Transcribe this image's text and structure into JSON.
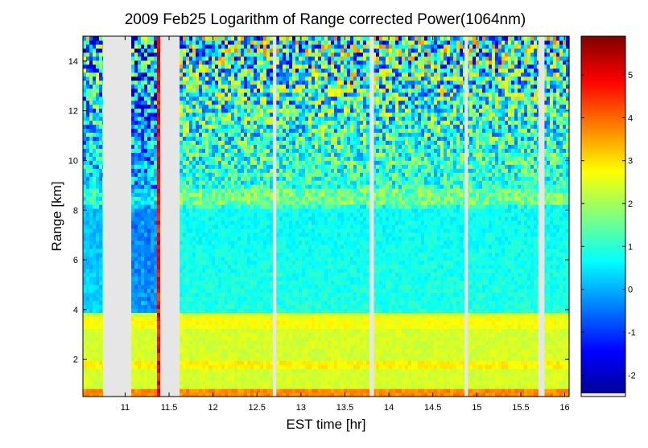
{
  "chart_data": {
    "type": "heatmap",
    "title": "2009 Feb25  Logarithm of Range corrected Power(1064nm)",
    "xlabel": "EST time [hr]",
    "ylabel": "Range [km]",
    "xlim": [
      10.52,
      16.05
    ],
    "ylim": [
      0.5,
      15
    ],
    "x_ticks": [
      11,
      11.5,
      12,
      12.5,
      13,
      13.5,
      14,
      14.5,
      15,
      15.5,
      16
    ],
    "x_tick_labels": [
      "11",
      "11.5",
      "12",
      "12.5",
      "13",
      "13.5",
      "14",
      "14.5",
      "15",
      "15.5",
      "16"
    ],
    "y_ticks": [
      2,
      4,
      6,
      8,
      10,
      12,
      14
    ],
    "y_tick_labels": [
      "2",
      "4",
      "6",
      "8",
      "10",
      "12",
      "14"
    ],
    "colorbar": {
      "colormap": "jet",
      "clim": [
        -2.5,
        5.9
      ],
      "ticks": [
        -2,
        -1,
        0,
        1,
        2,
        3,
        4,
        5
      ],
      "tick_labels": [
        "-2",
        "-1",
        "0",
        "1",
        "2",
        "3",
        "4",
        "5"
      ]
    },
    "data_gaps_hours": [
      [
        10.75,
        11.07
      ],
      [
        11.4,
        11.62
      ],
      [
        12.68,
        12.72
      ],
      [
        13.78,
        13.83
      ],
      [
        14.86,
        14.9
      ],
      [
        15.7,
        15.77
      ]
    ],
    "features": {
      "surface_layer": {
        "range_km": [
          0.5,
          0.8
        ],
        "approx_value": 3.7
      },
      "boundary_layer": {
        "range_km": [
          0.8,
          3.9
        ],
        "approx_value": 2.4
      },
      "elevated_layer": {
        "range_km": [
          1.6,
          2.0
        ],
        "approx_value": 2.8
      },
      "free_troposphere": {
        "range_km": [
          3.9,
          8
        ],
        "approx_value": 0.9
      },
      "aerosol_layer_upper": {
        "range_km": [
          8.2,
          8.9
        ],
        "approx_value": 1.6
      },
      "noise_region": {
        "range_km": [
          9,
          15
        ],
        "approx_value": 1.0
      },
      "cloud_spike": {
        "time_hr": 11.38,
        "range_km": [
          0.5,
          15
        ],
        "approx_value": 5.5
      }
    },
    "grid": false
  }
}
